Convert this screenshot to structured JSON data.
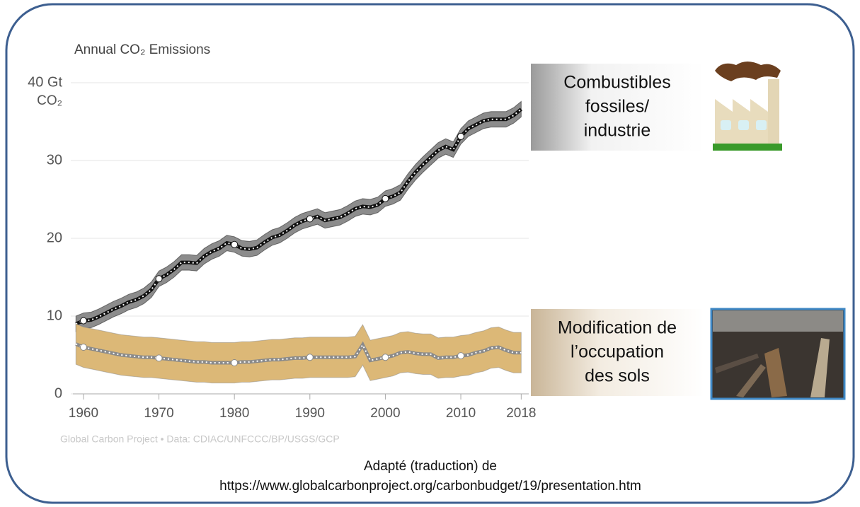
{
  "chart_data": {
    "type": "line",
    "title": "Annual CO₂ Emissions",
    "y_unit": "CO₂",
    "x": [
      1959,
      1960,
      1961,
      1962,
      1963,
      1964,
      1965,
      1966,
      1967,
      1968,
      1969,
      1970,
      1971,
      1972,
      1973,
      1974,
      1975,
      1976,
      1977,
      1978,
      1979,
      1980,
      1981,
      1982,
      1983,
      1984,
      1985,
      1986,
      1987,
      1988,
      1989,
      1990,
      1991,
      1992,
      1993,
      1994,
      1995,
      1996,
      1997,
      1998,
      1999,
      2000,
      2001,
      2002,
      2003,
      2004,
      2005,
      2006,
      2007,
      2008,
      2009,
      2010,
      2011,
      2012,
      2013,
      2014,
      2015,
      2016,
      2017,
      2018
    ],
    "series": [
      {
        "name": "Combustibles fossiles/ industrie",
        "color": "#111111",
        "band_color": "#8c8c8c",
        "error": 1.0,
        "values": [
          9.0,
          9.4,
          9.5,
          9.9,
          10.4,
          10.9,
          11.3,
          11.8,
          12.1,
          12.6,
          13.4,
          14.8,
          15.3,
          16.0,
          16.9,
          16.9,
          16.8,
          17.7,
          18.3,
          18.7,
          19.4,
          19.2,
          18.7,
          18.6,
          18.8,
          19.5,
          20.1,
          20.4,
          21.0,
          21.7,
          22.2,
          22.5,
          22.8,
          22.3,
          22.5,
          22.7,
          23.2,
          23.8,
          24.1,
          24.0,
          24.3,
          25.1,
          25.4,
          25.9,
          27.3,
          28.5,
          29.5,
          30.4,
          31.3,
          31.8,
          31.4,
          33.1,
          34.1,
          34.6,
          35.1,
          35.3,
          35.3,
          35.3,
          35.8,
          36.6
        ]
      },
      {
        "name": "Modification de l’occupation des sols",
        "color": "#8a8a8a",
        "band_color": "#dcb877",
        "error": 2.6,
        "values": [
          6.4,
          6.0,
          5.8,
          5.6,
          5.4,
          5.2,
          5.0,
          4.9,
          4.8,
          4.7,
          4.7,
          4.6,
          4.5,
          4.4,
          4.3,
          4.2,
          4.1,
          4.1,
          4.0,
          4.0,
          4.0,
          4.0,
          4.1,
          4.1,
          4.2,
          4.3,
          4.4,
          4.4,
          4.5,
          4.6,
          4.6,
          4.7,
          4.7,
          4.7,
          4.7,
          4.7,
          4.7,
          4.8,
          6.3,
          4.3,
          4.5,
          4.7,
          4.9,
          5.3,
          5.4,
          5.2,
          5.1,
          5.1,
          4.6,
          4.7,
          4.7,
          4.9,
          5.0,
          5.3,
          5.5,
          5.9,
          6.0,
          5.6,
          5.3,
          5.3
        ]
      }
    ],
    "xlim": [
      1958.6,
      2019
    ],
    "xticks": [
      1960,
      1970,
      1980,
      1990,
      2000,
      2010,
      2018
    ],
    "ylim": [
      0,
      42
    ],
    "yticks": [
      0,
      10,
      20,
      30,
      {
        "value": 40,
        "label": "40 Gt"
      }
    ],
    "grid": true,
    "fossil_label": [
      "Combustibles",
      "fossiles/",
      "industrie"
    ],
    "land_label": [
      "Modification de",
      "l’occupation",
      "des sols"
    ],
    "credit": "Global Carbon Project  •  Data: CDIAC/UNFCCC/BP/USGS/GCP"
  },
  "caption": [
    "Adapté (traduction) de",
    "https://www.globalcarbonproject.org/carbonbudget/19/presentation.htm"
  ]
}
